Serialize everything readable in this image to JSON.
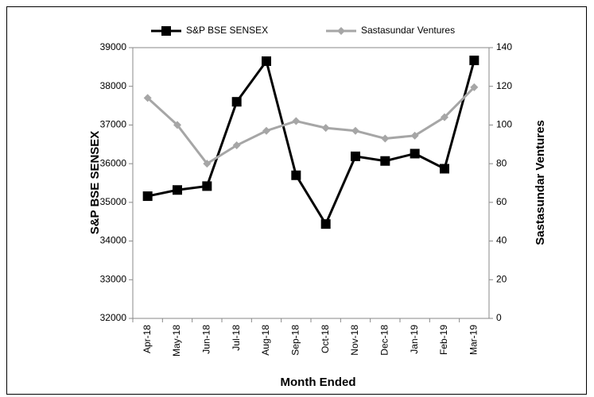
{
  "chart_data": {
    "type": "line",
    "categories": [
      "Apr-18",
      "May-18",
      "Jun-18",
      "Jul-18",
      "Aug-18",
      "Sep-18",
      "Oct-18",
      "Nov-18",
      "Dec-18",
      "Jan-19",
      "Feb-19",
      "Mar-19"
    ],
    "series": [
      {
        "name": "S&P BSE SENSEX",
        "color": "#000000",
        "marker": "square",
        "values": [
          35160,
          35320,
          35420,
          37600,
          38650,
          35700,
          34440,
          36190,
          36070,
          36260,
          35870,
          38670
        ]
      },
      {
        "name": "Sastasundar Ventures",
        "color": "#a6a6a6",
        "marker": "diamond",
        "axis": "y2",
        "values": [
          114,
          100,
          80,
          89.5,
          97,
          102,
          98.5,
          97,
          93,
          94.5,
          104,
          119.5
        ]
      }
    ],
    "x_label": "Month Ended",
    "y_label": "S&P BSE SENSEX",
    "y2_label": "Sastasundar Ventures",
    "ylim": [
      32000,
      39000
    ],
    "yticks": [
      32000,
      33000,
      34000,
      35000,
      36000,
      37000,
      38000,
      39000
    ],
    "y2lim": [
      0,
      140
    ],
    "y2ticks": [
      0,
      20,
      40,
      60,
      80,
      100,
      120,
      140
    ],
    "legend": "top"
  }
}
